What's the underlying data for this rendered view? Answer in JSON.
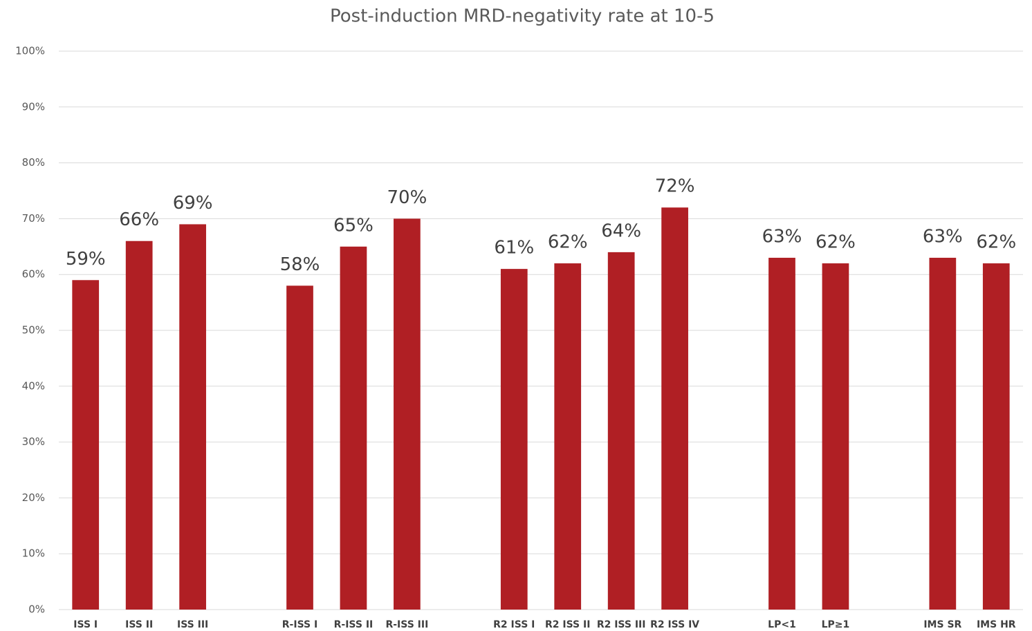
{
  "chart_data": {
    "type": "bar",
    "title": "Post-induction MRD-negativity rate at 10-5",
    "categories": [
      "ISS I",
      "ISS II",
      "ISS III",
      null,
      "R-ISS I",
      "R-ISS II",
      "R-ISS III",
      null,
      "R2 ISS I",
      "R2 ISS II",
      "R2 ISS III",
      "R2 ISS IV",
      null,
      "LP<1",
      "LP≥1",
      null,
      "IMS SR",
      "IMS HR"
    ],
    "values": [
      59,
      66,
      69,
      null,
      58,
      65,
      70,
      null,
      61,
      62,
      64,
      72,
      null,
      63,
      62,
      null,
      63,
      62
    ],
    "value_labels": [
      "59%",
      "66%",
      "69%",
      null,
      "58%",
      "65%",
      "70%",
      null,
      "61%",
      "62%",
      "64%",
      "72%",
      null,
      "63%",
      "62%",
      null,
      "63%",
      "62%"
    ],
    "color": "#b01f24",
    "ylim": [
      0,
      100
    ],
    "yticks": [
      {
        "value": 0,
        "label": "0%"
      },
      {
        "value": 10,
        "label": "10%"
      },
      {
        "value": 20,
        "label": "20%"
      },
      {
        "value": 30,
        "label": "30%"
      },
      {
        "value": 40,
        "label": "40%"
      },
      {
        "value": 50,
        "label": "50%"
      },
      {
        "value": 60,
        "label": "60%"
      },
      {
        "value": 70,
        "label": "70%"
      },
      {
        "value": 80,
        "label": "80%"
      },
      {
        "value": 90,
        "label": "90%"
      },
      {
        "value": 100,
        "label": "100%"
      }
    ],
    "grid": true
  }
}
